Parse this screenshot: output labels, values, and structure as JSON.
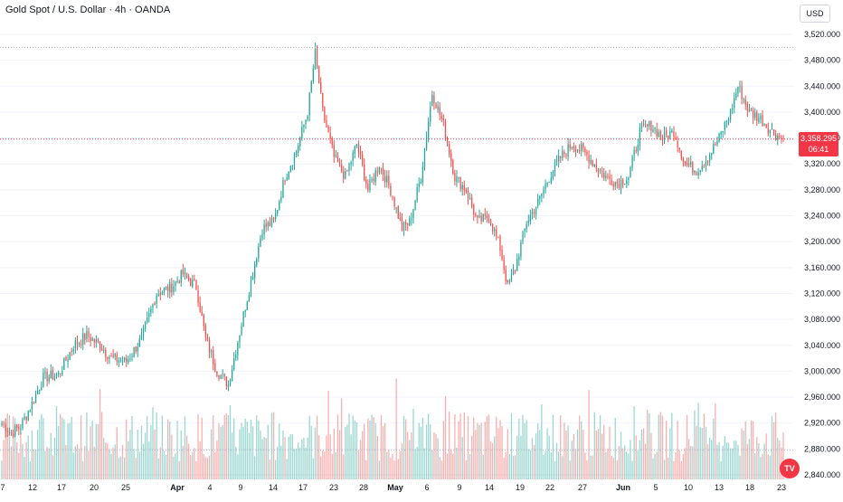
{
  "header": {
    "title": "Gold Spot / U.S. Dollar · 4h · OANDA",
    "currency": "USD"
  },
  "last_price": {
    "value": "3,358.295",
    "countdown": "06:41"
  },
  "logo_text": "TV",
  "colors": {
    "up": "#26a69a",
    "down": "#ef5350",
    "price_line": "#f23645",
    "grid": "#f0f3fa",
    "text": "#131722",
    "axis_text": "#131722"
  },
  "chart_data": {
    "type": "candlestick",
    "title": "Gold Spot / U.S. Dollar · 4h · OANDA",
    "y_axis": {
      "position": "right",
      "ylim": [
        2820,
        3540
      ],
      "ticks": [
        3520,
        3480,
        3440,
        3400,
        3360,
        3320,
        3280,
        3240,
        3200,
        3160,
        3120,
        3080,
        3040,
        3000,
        2960,
        2920,
        2880,
        2840
      ],
      "tick_labels": [
        "3,520.000",
        "3,480.000",
        "3,440.000",
        "3,400.000",
        "3,360.000",
        "3,320.000",
        "3,280.000",
        "3,240.000",
        "3,200.000",
        "3,160.000",
        "3,120.000",
        "3,080.000",
        "3,040.000",
        "3,000.000",
        "2,960.000",
        "2,920.000",
        "2,880.000",
        "2,840.000"
      ]
    },
    "x_axis": {
      "tick_labels": [
        "7",
        "12",
        "17",
        "20",
        "25",
        "Apr",
        "4",
        "9",
        "14",
        "17",
        "23",
        "28",
        "May",
        "6",
        "9",
        "14",
        "19",
        "22",
        "27",
        "Jun",
        "5",
        "10",
        "13",
        "18",
        "23"
      ]
    },
    "close_path": [
      {
        "i": 0,
        "p": 2920
      },
      {
        "i": 5,
        "p": 2905
      },
      {
        "i": 10,
        "p": 2915
      },
      {
        "i": 16,
        "p": 2950
      },
      {
        "i": 22,
        "p": 2990
      },
      {
        "i": 30,
        "p": 2995
      },
      {
        "i": 38,
        "p": 3040
      },
      {
        "i": 45,
        "p": 3055
      },
      {
        "i": 52,
        "p": 3040
      },
      {
        "i": 58,
        "p": 3020
      },
      {
        "i": 66,
        "p": 3015
      },
      {
        "i": 74,
        "p": 3050
      },
      {
        "i": 82,
        "p": 3120
      },
      {
        "i": 90,
        "p": 3130
      },
      {
        "i": 96,
        "p": 3150
      },
      {
        "i": 103,
        "p": 3130
      },
      {
        "i": 108,
        "p": 3050
      },
      {
        "i": 114,
        "p": 3000
      },
      {
        "i": 120,
        "p": 2980
      },
      {
        "i": 126,
        "p": 3060
      },
      {
        "i": 132,
        "p": 3140
      },
      {
        "i": 138,
        "p": 3220
      },
      {
        "i": 144,
        "p": 3230
      },
      {
        "i": 150,
        "p": 3300
      },
      {
        "i": 156,
        "p": 3340
      },
      {
        "i": 162,
        "p": 3400
      },
      {
        "i": 166,
        "p": 3490
      },
      {
        "i": 170,
        "p": 3400
      },
      {
        "i": 176,
        "p": 3330
      },
      {
        "i": 182,
        "p": 3300
      },
      {
        "i": 188,
        "p": 3350
      },
      {
        "i": 194,
        "p": 3280
      },
      {
        "i": 200,
        "p": 3320
      },
      {
        "i": 206,
        "p": 3280
      },
      {
        "i": 212,
        "p": 3220
      },
      {
        "i": 216,
        "p": 3230
      },
      {
        "i": 222,
        "p": 3300
      },
      {
        "i": 228,
        "p": 3430
      },
      {
        "i": 234,
        "p": 3380
      },
      {
        "i": 240,
        "p": 3300
      },
      {
        "i": 246,
        "p": 3280
      },
      {
        "i": 252,
        "p": 3230
      },
      {
        "i": 258,
        "p": 3240
      },
      {
        "i": 264,
        "p": 3190
      },
      {
        "i": 268,
        "p": 3130
      },
      {
        "i": 272,
        "p": 3160
      },
      {
        "i": 278,
        "p": 3230
      },
      {
        "i": 284,
        "p": 3260
      },
      {
        "i": 290,
        "p": 3300
      },
      {
        "i": 296,
        "p": 3330
      },
      {
        "i": 302,
        "p": 3350
      },
      {
        "i": 308,
        "p": 3340
      },
      {
        "i": 314,
        "p": 3320
      },
      {
        "i": 320,
        "p": 3300
      },
      {
        "i": 326,
        "p": 3290
      },
      {
        "i": 332,
        "p": 3300
      },
      {
        "i": 338,
        "p": 3370
      },
      {
        "i": 344,
        "p": 3380
      },
      {
        "i": 350,
        "p": 3360
      },
      {
        "i": 356,
        "p": 3370
      },
      {
        "i": 362,
        "p": 3320
      },
      {
        "i": 368,
        "p": 3310
      },
      {
        "i": 374,
        "p": 3330
      },
      {
        "i": 380,
        "p": 3360
      },
      {
        "i": 386,
        "p": 3400
      },
      {
        "i": 390,
        "p": 3440
      },
      {
        "i": 396,
        "p": 3400
      },
      {
        "i": 402,
        "p": 3390
      },
      {
        "i": 408,
        "p": 3370
      },
      {
        "i": 414,
        "p": 3358.295
      }
    ]
  }
}
